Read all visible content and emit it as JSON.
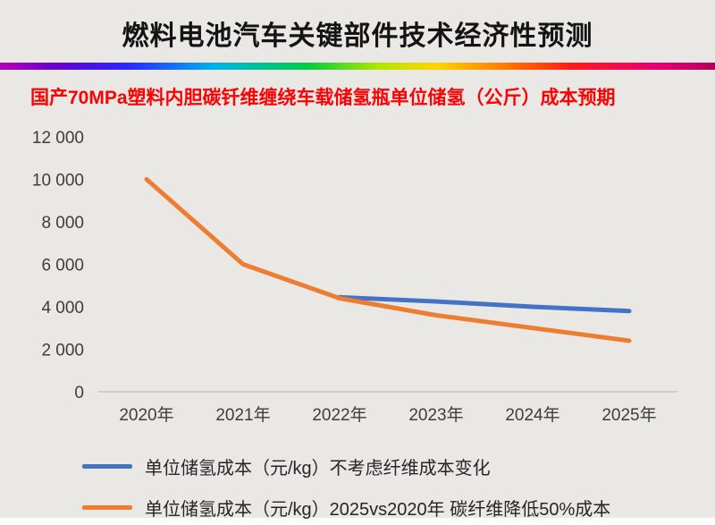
{
  "header": {
    "title": "燃料电池汽车关键部件技术经济性预测",
    "subtitle": "国产70MPa塑料内胆碳钎维缠绕车载储氢瓶单位储氢（公斤）成本预期"
  },
  "colors": {
    "background": "#e9e8e5",
    "title_text": "#141414",
    "subtitle_red": "#fe0000",
    "axis_line": "#c6c6c6",
    "axis_text": "#3d3d3d",
    "series_blue": "#4472c4",
    "series_orange": "#ed7d31"
  },
  "chart_data": {
    "type": "line",
    "title": "国产70MPa塑料内胆碳钎维缠绕车载储氢瓶单位储氢（公斤）成本预期",
    "categories": [
      "2020年",
      "2021年",
      "2022年",
      "2023年",
      "2024年",
      "2025年"
    ],
    "series": [
      {
        "name": "单位储氢成本（元/kg）不考虑纤维成本变化",
        "color": "#4472c4",
        "values": [
          null,
          null,
          4450,
          4250,
          4000,
          3800
        ]
      },
      {
        "name": "单位储氢成本（元/kg）2025vs2020年 碳纤维降低50%成本",
        "color": "#ed7d31",
        "values": [
          10000,
          6000,
          4400,
          3600,
          3000,
          2400
        ]
      }
    ],
    "xlabel": "",
    "ylabel": "",
    "ylim": [
      0,
      12000
    ],
    "yticks": [
      {
        "value": 0,
        "label": "0"
      },
      {
        "value": 2000,
        "label": "2 000"
      },
      {
        "value": 4000,
        "label": "4 000"
      },
      {
        "value": 6000,
        "label": "6 000"
      },
      {
        "value": 8000,
        "label": "8 000"
      },
      {
        "value": 10000,
        "label": "10 000"
      },
      {
        "value": 12000,
        "label": "12 000"
      }
    ],
    "grid": false,
    "legend_position": "bottom"
  }
}
